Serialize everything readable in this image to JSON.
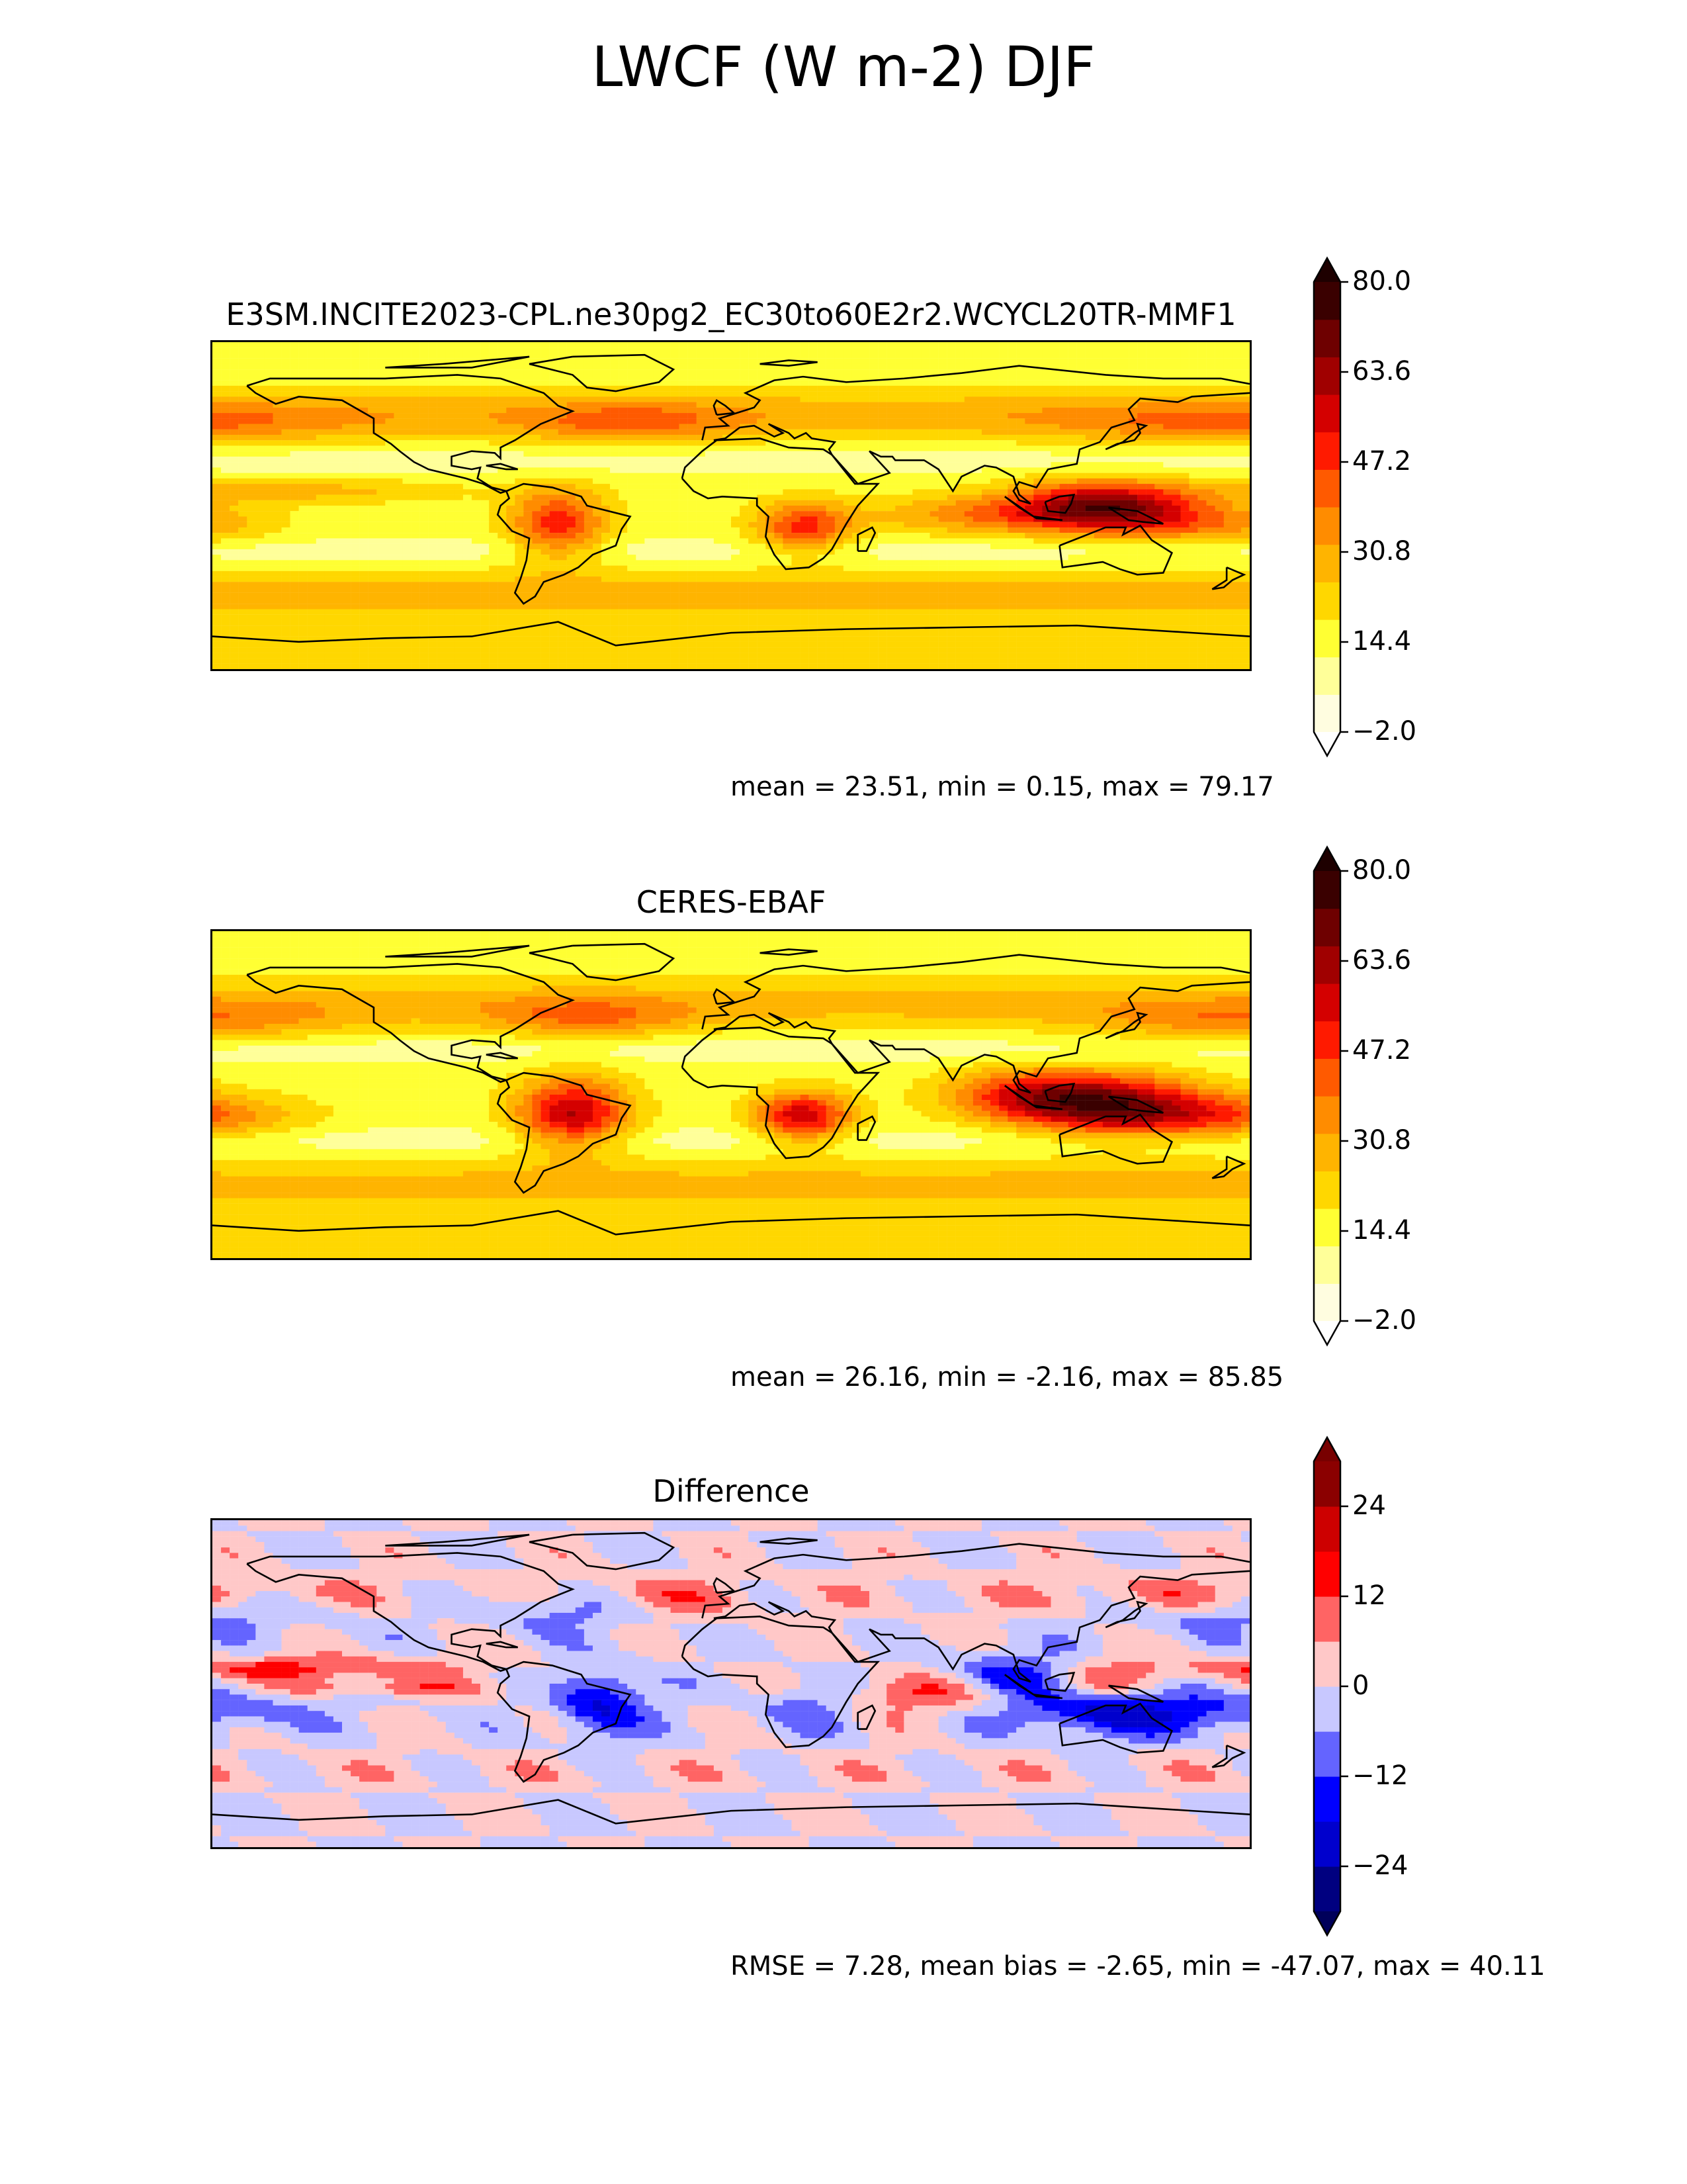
{
  "figure": {
    "title": "LWCF (W m-2) DJF"
  },
  "panels": [
    {
      "id": "test",
      "title": "E3SM.INCITE2023-CPL.ne30pg2_EC30to60E2r2.WCYCL20TR-MMF1",
      "stats": "mean = 23.51, min = 0.15, max = 79.17",
      "colorbar": {
        "ticks": [
          "80.0",
          "63.6",
          "47.2",
          "30.8",
          "14.4",
          "−2.0"
        ],
        "colors": [
          "#fffde0",
          "#ffff99",
          "#ffff33",
          "#ffd700",
          "#ffb400",
          "#ff8c00",
          "#ff5a00",
          "#ff1a00",
          "#d40000",
          "#a00000",
          "#6e0000",
          "#3a0000"
        ],
        "extend_top_color": "#1e0000",
        "extend_bottom_color": "#ffffff"
      }
    },
    {
      "id": "reference",
      "title": "CERES-EBAF",
      "stats": "mean = 26.16, min = -2.16, max = 85.85",
      "colorbar": {
        "ticks": [
          "80.0",
          "63.6",
          "47.2",
          "30.8",
          "14.4",
          "−2.0"
        ],
        "colors": [
          "#fffde0",
          "#ffff99",
          "#ffff33",
          "#ffd700",
          "#ffb400",
          "#ff8c00",
          "#ff5a00",
          "#ff1a00",
          "#d40000",
          "#a00000",
          "#6e0000",
          "#3a0000"
        ],
        "extend_top_color": "#1e0000",
        "extend_bottom_color": "#ffffff"
      }
    },
    {
      "id": "difference",
      "title": "Difference",
      "stats": "RMSE = 7.28, mean bias = -2.65, min = -47.07, max = 40.11",
      "colorbar": {
        "ticks": [
          "24",
          "12",
          "0",
          "−12",
          "−24"
        ],
        "colors": [
          "#000080",
          "#0000cd",
          "#0000ff",
          "#6464ff",
          "#c8c8ff",
          "#ffc8c8",
          "#ff6464",
          "#ff0000",
          "#cd0000",
          "#8b0000"
        ],
        "extend_top_color": "#780000",
        "extend_bottom_color": "#00005a"
      }
    }
  ]
}
